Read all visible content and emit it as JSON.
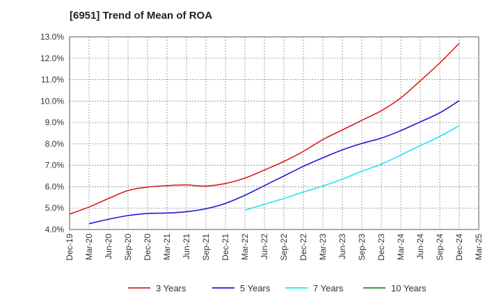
{
  "chart_data": {
    "type": "line",
    "title": "[6951]  Trend of Mean of ROA",
    "xlabel": "",
    "ylabel": "",
    "ylim": [
      4.0,
      13.0
    ],
    "y_ticks": [
      "4.0%",
      "5.0%",
      "6.0%",
      "7.0%",
      "8.0%",
      "9.0%",
      "10.0%",
      "11.0%",
      "12.0%",
      "13.0%"
    ],
    "categories": [
      "Dec-19",
      "Mar-20",
      "Jun-20",
      "Sep-20",
      "Dec-20",
      "Mar-21",
      "Jun-21",
      "Sep-21",
      "Dec-21",
      "Mar-22",
      "Jun-22",
      "Sep-22",
      "Dec-22",
      "Mar-23",
      "Jun-23",
      "Sep-23",
      "Dec-23",
      "Mar-24",
      "Jun-24",
      "Sep-24",
      "Dec-24",
      "Mar-25"
    ],
    "grid": true,
    "legend_position": "bottom",
    "series": [
      {
        "name": "3 Years",
        "color": "#dd1c1c",
        "values": [
          4.72,
          5.05,
          5.45,
          5.82,
          5.98,
          6.05,
          6.08,
          6.03,
          6.15,
          6.4,
          6.78,
          7.18,
          7.65,
          8.2,
          8.65,
          9.1,
          9.55,
          10.15,
          10.95,
          11.78,
          12.7,
          null
        ]
      },
      {
        "name": "5 Years",
        "color": "#1a1ad4",
        "values": [
          null,
          4.27,
          4.48,
          4.65,
          4.75,
          4.77,
          4.83,
          4.97,
          5.22,
          5.6,
          6.05,
          6.5,
          6.95,
          7.35,
          7.72,
          8.02,
          8.27,
          8.62,
          9.03,
          9.45,
          10.02,
          null
        ]
      },
      {
        "name": "7 Years",
        "color": "#22e5f0",
        "values": [
          null,
          null,
          null,
          null,
          null,
          null,
          null,
          null,
          null,
          4.9,
          5.18,
          5.45,
          5.75,
          6.03,
          6.35,
          6.72,
          7.05,
          7.48,
          7.92,
          8.35,
          8.85,
          null
        ]
      },
      {
        "name": "10 Years",
        "color": "#1e8c1e",
        "values": [
          null,
          null,
          null,
          null,
          null,
          null,
          null,
          null,
          null,
          null,
          null,
          null,
          null,
          null,
          null,
          null,
          null,
          null,
          null,
          null,
          null,
          null
        ]
      }
    ]
  }
}
